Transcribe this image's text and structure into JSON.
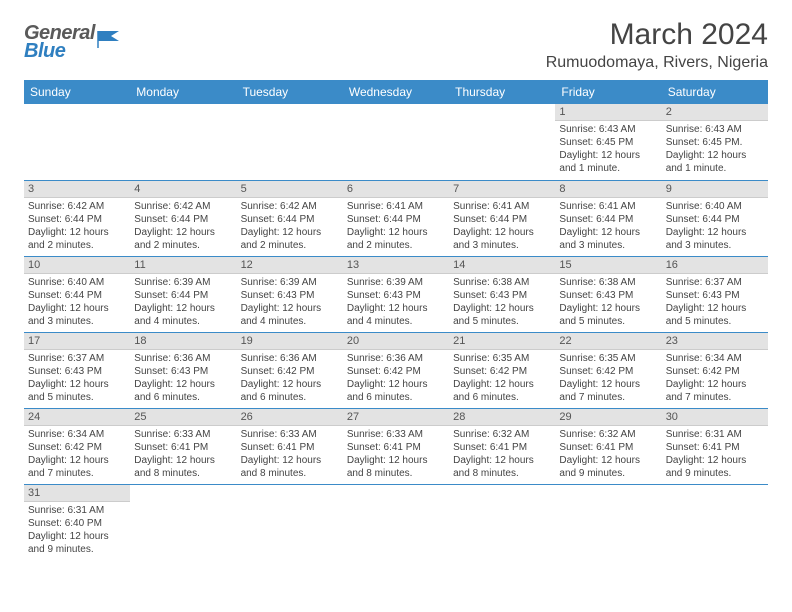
{
  "logo": {
    "general": "General",
    "blue": "Blue"
  },
  "title": "March 2024",
  "location": "Rumuodomaya, Rivers, Nigeria",
  "colors": {
    "header_bg": "#3b8bc8",
    "header_text": "#ffffff",
    "daybar_bg": "#e3e3e3",
    "rule": "#3b8bc8"
  },
  "day_names": [
    "Sunday",
    "Monday",
    "Tuesday",
    "Wednesday",
    "Thursday",
    "Friday",
    "Saturday"
  ],
  "weeks": [
    [
      null,
      null,
      null,
      null,
      null,
      {
        "n": "1",
        "sr": "Sunrise: 6:43 AM",
        "ss": "Sunset: 6:45 PM",
        "dl": "Daylight: 12 hours and 1 minute."
      },
      {
        "n": "2",
        "sr": "Sunrise: 6:43 AM",
        "ss": "Sunset: 6:45 PM.",
        "dl": "Daylight: 12 hours and 1 minute."
      }
    ],
    [
      {
        "n": "3",
        "sr": "Sunrise: 6:42 AM",
        "ss": "Sunset: 6:44 PM",
        "dl": "Daylight: 12 hours and 2 minutes."
      },
      {
        "n": "4",
        "sr": "Sunrise: 6:42 AM",
        "ss": "Sunset: 6:44 PM",
        "dl": "Daylight: 12 hours and 2 minutes."
      },
      {
        "n": "5",
        "sr": "Sunrise: 6:42 AM",
        "ss": "Sunset: 6:44 PM",
        "dl": "Daylight: 12 hours and 2 minutes."
      },
      {
        "n": "6",
        "sr": "Sunrise: 6:41 AM",
        "ss": "Sunset: 6:44 PM",
        "dl": "Daylight: 12 hours and 2 minutes."
      },
      {
        "n": "7",
        "sr": "Sunrise: 6:41 AM",
        "ss": "Sunset: 6:44 PM",
        "dl": "Daylight: 12 hours and 3 minutes."
      },
      {
        "n": "8",
        "sr": "Sunrise: 6:41 AM",
        "ss": "Sunset: 6:44 PM",
        "dl": "Daylight: 12 hours and 3 minutes."
      },
      {
        "n": "9",
        "sr": "Sunrise: 6:40 AM",
        "ss": "Sunset: 6:44 PM",
        "dl": "Daylight: 12 hours and 3 minutes."
      }
    ],
    [
      {
        "n": "10",
        "sr": "Sunrise: 6:40 AM",
        "ss": "Sunset: 6:44 PM",
        "dl": "Daylight: 12 hours and 3 minutes."
      },
      {
        "n": "11",
        "sr": "Sunrise: 6:39 AM",
        "ss": "Sunset: 6:44 PM",
        "dl": "Daylight: 12 hours and 4 minutes."
      },
      {
        "n": "12",
        "sr": "Sunrise: 6:39 AM",
        "ss": "Sunset: 6:43 PM",
        "dl": "Daylight: 12 hours and 4 minutes."
      },
      {
        "n": "13",
        "sr": "Sunrise: 6:39 AM",
        "ss": "Sunset: 6:43 PM",
        "dl": "Daylight: 12 hours and 4 minutes."
      },
      {
        "n": "14",
        "sr": "Sunrise: 6:38 AM",
        "ss": "Sunset: 6:43 PM",
        "dl": "Daylight: 12 hours and 5 minutes."
      },
      {
        "n": "15",
        "sr": "Sunrise: 6:38 AM",
        "ss": "Sunset: 6:43 PM",
        "dl": "Daylight: 12 hours and 5 minutes."
      },
      {
        "n": "16",
        "sr": "Sunrise: 6:37 AM",
        "ss": "Sunset: 6:43 PM",
        "dl": "Daylight: 12 hours and 5 minutes."
      }
    ],
    [
      {
        "n": "17",
        "sr": "Sunrise: 6:37 AM",
        "ss": "Sunset: 6:43 PM",
        "dl": "Daylight: 12 hours and 5 minutes."
      },
      {
        "n": "18",
        "sr": "Sunrise: 6:36 AM",
        "ss": "Sunset: 6:43 PM",
        "dl": "Daylight: 12 hours and 6 minutes."
      },
      {
        "n": "19",
        "sr": "Sunrise: 6:36 AM",
        "ss": "Sunset: 6:42 PM",
        "dl": "Daylight: 12 hours and 6 minutes."
      },
      {
        "n": "20",
        "sr": "Sunrise: 6:36 AM",
        "ss": "Sunset: 6:42 PM",
        "dl": "Daylight: 12 hours and 6 minutes."
      },
      {
        "n": "21",
        "sr": "Sunrise: 6:35 AM",
        "ss": "Sunset: 6:42 PM",
        "dl": "Daylight: 12 hours and 6 minutes."
      },
      {
        "n": "22",
        "sr": "Sunrise: 6:35 AM",
        "ss": "Sunset: 6:42 PM",
        "dl": "Daylight: 12 hours and 7 minutes."
      },
      {
        "n": "23",
        "sr": "Sunrise: 6:34 AM",
        "ss": "Sunset: 6:42 PM",
        "dl": "Daylight: 12 hours and 7 minutes."
      }
    ],
    [
      {
        "n": "24",
        "sr": "Sunrise: 6:34 AM",
        "ss": "Sunset: 6:42 PM",
        "dl": "Daylight: 12 hours and 7 minutes."
      },
      {
        "n": "25",
        "sr": "Sunrise: 6:33 AM",
        "ss": "Sunset: 6:41 PM",
        "dl": "Daylight: 12 hours and 8 minutes."
      },
      {
        "n": "26",
        "sr": "Sunrise: 6:33 AM",
        "ss": "Sunset: 6:41 PM",
        "dl": "Daylight: 12 hours and 8 minutes."
      },
      {
        "n": "27",
        "sr": "Sunrise: 6:33 AM",
        "ss": "Sunset: 6:41 PM",
        "dl": "Daylight: 12 hours and 8 minutes."
      },
      {
        "n": "28",
        "sr": "Sunrise: 6:32 AM",
        "ss": "Sunset: 6:41 PM",
        "dl": "Daylight: 12 hours and 8 minutes."
      },
      {
        "n": "29",
        "sr": "Sunrise: 6:32 AM",
        "ss": "Sunset: 6:41 PM",
        "dl": "Daylight: 12 hours and 9 minutes."
      },
      {
        "n": "30",
        "sr": "Sunrise: 6:31 AM",
        "ss": "Sunset: 6:41 PM",
        "dl": "Daylight: 12 hours and 9 minutes."
      }
    ],
    [
      {
        "n": "31",
        "sr": "Sunrise: 6:31 AM",
        "ss": "Sunset: 6:40 PM",
        "dl": "Daylight: 12 hours and 9 minutes."
      },
      null,
      null,
      null,
      null,
      null,
      null
    ]
  ]
}
